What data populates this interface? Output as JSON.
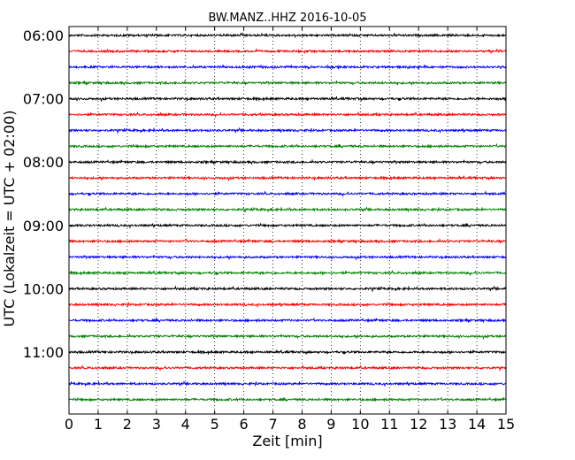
{
  "chart_data": {
    "type": "line",
    "title": "BW.MANZ..HHZ 2016-10-05",
    "xlabel": "Zeit  [min]",
    "ylabel": "UTC (Lokalzeit = UTC + 02:00)",
    "xlim": [
      0,
      15
    ],
    "x_ticks": [
      "0",
      "1",
      "2",
      "3",
      "4",
      "5",
      "6",
      "7",
      "8",
      "9",
      "10",
      "11",
      "12",
      "13",
      "14",
      "15"
    ],
    "y_tick_labels": [
      "06:00",
      "07:00",
      "08:00",
      "09:00",
      "10:00",
      "11:00"
    ],
    "grid": "vertical dotted lines at each minute",
    "trace_colors": [
      "#000000",
      "#ff0000",
      "#0000ff",
      "#008000"
    ],
    "traces": [
      {
        "start": "06:00"
      },
      {
        "start": "06:15"
      },
      {
        "start": "06:30"
      },
      {
        "start": "06:45"
      },
      {
        "start": "07:00"
      },
      {
        "start": "07:15"
      },
      {
        "start": "07:30"
      },
      {
        "start": "07:45"
      },
      {
        "start": "08:00"
      },
      {
        "start": "08:15"
      },
      {
        "start": "08:30"
      },
      {
        "start": "08:45"
      },
      {
        "start": "09:00"
      },
      {
        "start": "09:15"
      },
      {
        "start": "09:30"
      },
      {
        "start": "09:45"
      },
      {
        "start": "10:00"
      },
      {
        "start": "10:15"
      },
      {
        "start": "10:30"
      },
      {
        "start": "10:45"
      },
      {
        "start": "11:00"
      },
      {
        "start": "11:15"
      },
      {
        "start": "11:30"
      },
      {
        "start": "11:45"
      }
    ]
  }
}
